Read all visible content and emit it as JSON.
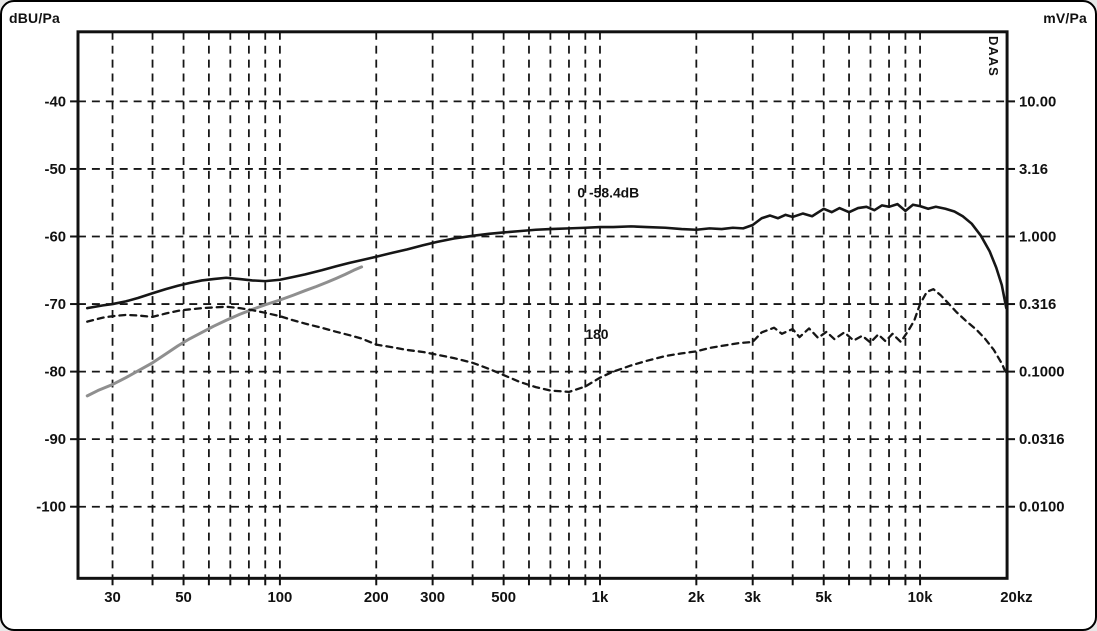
{
  "chart_data": {
    "type": "line",
    "title": "",
    "xlabel": "",
    "ylabel_left": "dBU/Pa",
    "ylabel_right": "mV/Pa",
    "daas_label": "DAAS",
    "x_scale": "log",
    "grid": true,
    "colors": {
      "curve_dark": "#161616",
      "curve_gray": "#8f8f8f",
      "grid": "#161616",
      "frame": "#111111"
    },
    "axes": {
      "f_min": 23.4,
      "f_max": 18700,
      "db_min": -110.6,
      "db_max": -29.7,
      "grid_freqs": [
        30,
        40,
        50,
        60,
        70,
        80,
        90,
        100,
        200,
        300,
        400,
        500,
        600,
        700,
        800,
        900,
        1000,
        2000,
        3000,
        4000,
        5000,
        6000,
        7000,
        8000,
        9000,
        10000
      ],
      "grid_dbs": [
        -40,
        -50,
        -60,
        -70,
        -80,
        -90,
        -100
      ],
      "x_tick_labels": [
        {
          "f": 30,
          "label": "30"
        },
        {
          "f": 50,
          "label": "50"
        },
        {
          "f": 100,
          "label": "100"
        },
        {
          "f": 200,
          "label": "200"
        },
        {
          "f": 300,
          "label": "300"
        },
        {
          "f": 500,
          "label": "500"
        },
        {
          "f": 1000,
          "label": "1k"
        },
        {
          "f": 2000,
          "label": "2k"
        },
        {
          "f": 3000,
          "label": "3k"
        },
        {
          "f": 5000,
          "label": "5k"
        },
        {
          "f": 10000,
          "label": "10k"
        },
        {
          "f": 20000,
          "label": "20kz"
        }
      ],
      "left_tick_labels": [
        {
          "db": -40,
          "label": "-40"
        },
        {
          "db": -50,
          "label": "-50"
        },
        {
          "db": -60,
          "label": "-60"
        },
        {
          "db": -70,
          "label": "-70"
        },
        {
          "db": -80,
          "label": "-80"
        },
        {
          "db": -90,
          "label": "-90"
        },
        {
          "db": -100,
          "label": "-100"
        }
      ],
      "right_tick_labels": [
        {
          "db": -40,
          "label": "10.00"
        },
        {
          "db": -50,
          "label": "3.16"
        },
        {
          "db": -60,
          "label": "1.000"
        },
        {
          "db": -70,
          "label": "0.316"
        },
        {
          "db": -80,
          "label": "0.1000"
        },
        {
          "db": -90,
          "label": "0.0316"
        },
        {
          "db": -100,
          "label": "0.0100"
        }
      ]
    },
    "series": [
      {
        "name": "gray",
        "style": "solid",
        "color": "#8f8f8f",
        "width": 3,
        "points": [
          [
            25,
            -83.6
          ],
          [
            27,
            -82.8
          ],
          [
            30,
            -81.9
          ],
          [
            33,
            -80.9
          ],
          [
            36,
            -79.9
          ],
          [
            40,
            -78.7
          ],
          [
            44,
            -77.4
          ],
          [
            48,
            -76.2
          ],
          [
            52,
            -75.2
          ],
          [
            57,
            -74.2
          ],
          [
            62,
            -73.3
          ],
          [
            68,
            -72.4
          ],
          [
            75,
            -71.5
          ],
          [
            82,
            -70.8
          ],
          [
            90,
            -70.1
          ],
          [
            100,
            -69.4
          ],
          [
            110,
            -68.7
          ],
          [
            120,
            -68.0
          ],
          [
            130,
            -67.4
          ],
          [
            140,
            -66.8
          ],
          [
            150,
            -66.2
          ],
          [
            160,
            -65.6
          ],
          [
            170,
            -65.0
          ],
          [
            180,
            -64.5
          ]
        ]
      },
      {
        "name": "180",
        "style": "dashed",
        "color": "#161616",
        "width": 2.3,
        "points": [
          [
            25,
            -72.6
          ],
          [
            28,
            -72.0
          ],
          [
            30,
            -71.8
          ],
          [
            33,
            -71.6
          ],
          [
            36,
            -71.7
          ],
          [
            40,
            -71.9
          ],
          [
            44,
            -71.4
          ],
          [
            48,
            -71.0
          ],
          [
            52,
            -70.8
          ],
          [
            57,
            -70.6
          ],
          [
            62,
            -70.5
          ],
          [
            68,
            -70.4
          ],
          [
            75,
            -70.6
          ],
          [
            82,
            -70.9
          ],
          [
            90,
            -71.3
          ],
          [
            100,
            -71.8
          ],
          [
            110,
            -72.4
          ],
          [
            120,
            -72.9
          ],
          [
            135,
            -73.5
          ],
          [
            150,
            -74.1
          ],
          [
            165,
            -74.6
          ],
          [
            180,
            -75.1
          ],
          [
            200,
            -76.0
          ],
          [
            225,
            -76.4
          ],
          [
            250,
            -76.8
          ],
          [
            280,
            -77.1
          ],
          [
            310,
            -77.5
          ],
          [
            350,
            -78.0
          ],
          [
            400,
            -78.7
          ],
          [
            450,
            -79.6
          ],
          [
            500,
            -80.5
          ],
          [
            560,
            -81.5
          ],
          [
            630,
            -82.3
          ],
          [
            700,
            -82.8
          ],
          [
            800,
            -83.0
          ],
          [
            900,
            -82.2
          ],
          [
            1000,
            -80.9
          ],
          [
            1100,
            -80.0
          ],
          [
            1250,
            -79.1
          ],
          [
            1400,
            -78.4
          ],
          [
            1600,
            -77.7
          ],
          [
            1800,
            -77.3
          ],
          [
            2000,
            -77.0
          ],
          [
            2200,
            -76.5
          ],
          [
            2400,
            -76.2
          ],
          [
            2700,
            -75.8
          ],
          [
            3000,
            -75.6
          ],
          [
            3200,
            -74.2
          ],
          [
            3500,
            -73.5
          ],
          [
            3700,
            -74.4
          ],
          [
            4000,
            -73.7
          ],
          [
            4200,
            -74.9
          ],
          [
            4500,
            -73.6
          ],
          [
            4800,
            -75.0
          ],
          [
            5100,
            -74.1
          ],
          [
            5400,
            -75.2
          ],
          [
            5800,
            -74.2
          ],
          [
            6200,
            -75.4
          ],
          [
            6600,
            -74.7
          ],
          [
            7000,
            -75.7
          ],
          [
            7400,
            -74.5
          ],
          [
            7800,
            -75.5
          ],
          [
            8200,
            -74.4
          ],
          [
            8700,
            -75.6
          ],
          [
            9200,
            -73.9
          ],
          [
            9600,
            -72.4
          ],
          [
            10000,
            -70.0
          ],
          [
            10500,
            -68.2
          ],
          [
            11000,
            -67.8
          ],
          [
            11600,
            -68.7
          ],
          [
            12200,
            -69.8
          ],
          [
            13000,
            -71.2
          ],
          [
            14000,
            -72.6
          ],
          [
            15000,
            -73.8
          ],
          [
            16000,
            -75.2
          ],
          [
            17000,
            -76.8
          ],
          [
            18000,
            -78.8
          ],
          [
            18600,
            -80.3
          ]
        ]
      },
      {
        "name": "0",
        "style": "solid",
        "color": "#161616",
        "width": 2.6,
        "points": [
          [
            25,
            -70.6
          ],
          [
            28,
            -70.2
          ],
          [
            30,
            -70.0
          ],
          [
            33,
            -69.6
          ],
          [
            36,
            -69.1
          ],
          [
            40,
            -68.4
          ],
          [
            44,
            -67.8
          ],
          [
            48,
            -67.3
          ],
          [
            52,
            -66.9
          ],
          [
            57,
            -66.5
          ],
          [
            62,
            -66.3
          ],
          [
            68,
            -66.1
          ],
          [
            75,
            -66.3
          ],
          [
            82,
            -66.5
          ],
          [
            90,
            -66.6
          ],
          [
            100,
            -66.4
          ],
          [
            110,
            -66.0
          ],
          [
            120,
            -65.6
          ],
          [
            135,
            -65.0
          ],
          [
            150,
            -64.4
          ],
          [
            165,
            -63.9
          ],
          [
            180,
            -63.5
          ],
          [
            200,
            -63.0
          ],
          [
            225,
            -62.4
          ],
          [
            250,
            -61.9
          ],
          [
            280,
            -61.3
          ],
          [
            310,
            -60.8
          ],
          [
            350,
            -60.3
          ],
          [
            400,
            -59.9
          ],
          [
            450,
            -59.6
          ],
          [
            500,
            -59.4
          ],
          [
            560,
            -59.2
          ],
          [
            630,
            -59.0
          ],
          [
            700,
            -58.9
          ],
          [
            800,
            -58.8
          ],
          [
            900,
            -58.7
          ],
          [
            1000,
            -58.6
          ],
          [
            1100,
            -58.6
          ],
          [
            1250,
            -58.5
          ],
          [
            1400,
            -58.6
          ],
          [
            1600,
            -58.7
          ],
          [
            1800,
            -58.9
          ],
          [
            2000,
            -59.0
          ],
          [
            2200,
            -58.8
          ],
          [
            2400,
            -58.9
          ],
          [
            2600,
            -58.7
          ],
          [
            2800,
            -58.8
          ],
          [
            3000,
            -58.3
          ],
          [
            3200,
            -57.3
          ],
          [
            3400,
            -56.9
          ],
          [
            3600,
            -57.3
          ],
          [
            3800,
            -56.8
          ],
          [
            4000,
            -57.1
          ],
          [
            4300,
            -56.6
          ],
          [
            4600,
            -57.0
          ],
          [
            5000,
            -55.9
          ],
          [
            5300,
            -56.4
          ],
          [
            5600,
            -55.8
          ],
          [
            6000,
            -56.4
          ],
          [
            6400,
            -55.8
          ],
          [
            6800,
            -55.6
          ],
          [
            7200,
            -56.1
          ],
          [
            7600,
            -55.4
          ],
          [
            8000,
            -55.6
          ],
          [
            8500,
            -55.2
          ],
          [
            9000,
            -56.2
          ],
          [
            9500,
            -55.3
          ],
          [
            10000,
            -55.5
          ],
          [
            10600,
            -55.9
          ],
          [
            11200,
            -55.6
          ],
          [
            12000,
            -55.9
          ],
          [
            12800,
            -56.3
          ],
          [
            13600,
            -57.0
          ],
          [
            14500,
            -58.1
          ],
          [
            15500,
            -59.9
          ],
          [
            16500,
            -62.2
          ],
          [
            17300,
            -64.6
          ],
          [
            18000,
            -67.2
          ],
          [
            18600,
            -70.6
          ]
        ]
      }
    ],
    "annotations": [
      {
        "f": 850,
        "db": -54.2,
        "text": "0  -58.4dB"
      },
      {
        "f": 900,
        "db": -75.2,
        "text": "180"
      }
    ]
  }
}
